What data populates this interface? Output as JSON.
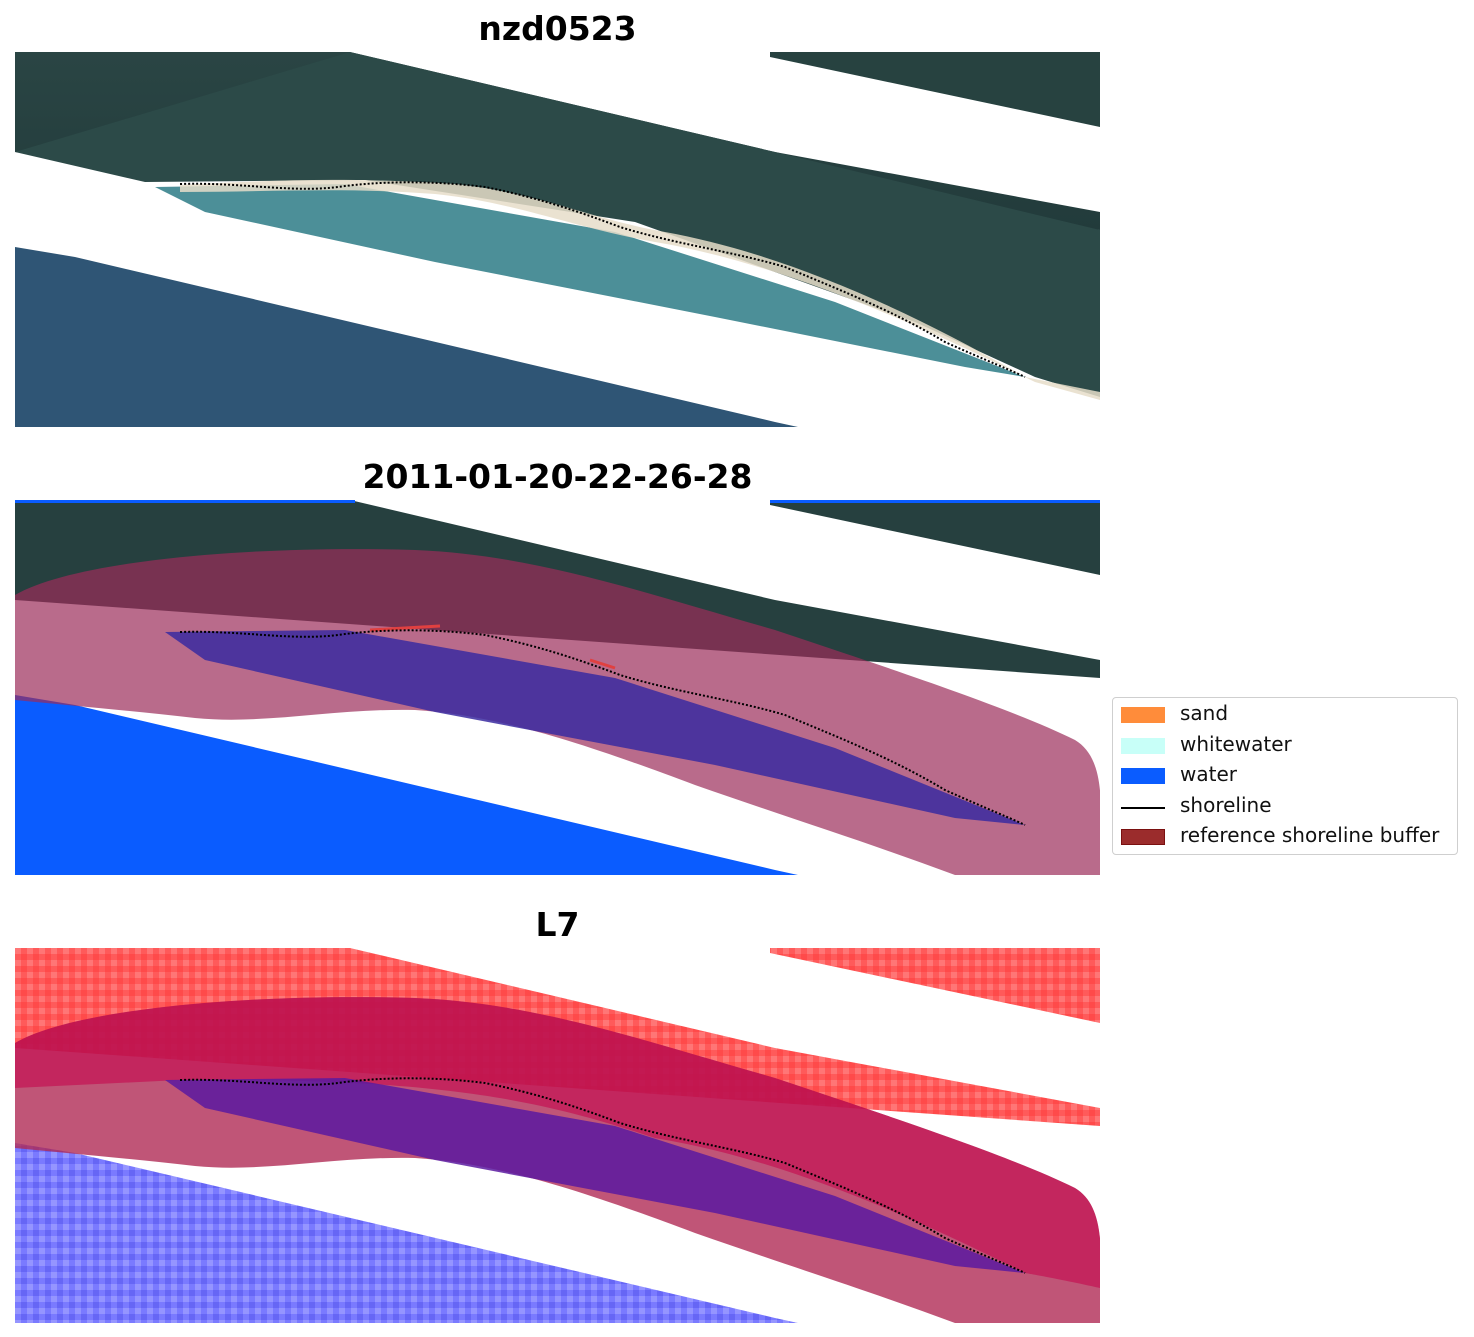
{
  "panels": [
    {
      "title": "nzd0523"
    },
    {
      "title": "2011-01-20-22-26-28"
    },
    {
      "title": "L7"
    }
  ],
  "legend": {
    "items": [
      {
        "label": "sand",
        "kind": "patch",
        "color": "#ff8c3a"
      },
      {
        "label": "whitewater",
        "kind": "patch",
        "color": "#c8fff8"
      },
      {
        "label": "water",
        "kind": "patch",
        "color": "#0a5cff"
      },
      {
        "label": "shoreline",
        "kind": "line",
        "color": "#000000"
      },
      {
        "label": "reference shoreline buffer",
        "kind": "patch",
        "color": "#9b2c2c"
      }
    ]
  },
  "colors": {
    "land": "#26403f",
    "shallow_water": "#3f7f8a",
    "deep_water": "#2f5575",
    "beach": "#e8e0cc",
    "water_class": "#0a5cff",
    "buffer": "#9b2c5a",
    "land_index": "#ff4040",
    "water_index": "#6f6fff"
  }
}
